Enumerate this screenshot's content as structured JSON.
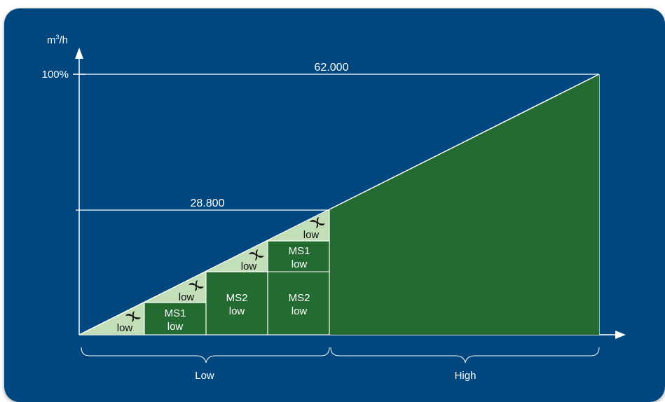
{
  "colors": {
    "background": "#00467f",
    "dark_green": "#246b32",
    "light_green": "#c3dfb8",
    "line": "#ffffff",
    "dark_text": "#111111"
  },
  "axis": {
    "y_unit_base": "m",
    "y_unit_exp": "3",
    "y_unit_tail": "/h",
    "y_max_label": "100%"
  },
  "levels": {
    "top_value": "62.000",
    "mid_value": "28.800"
  },
  "cells": {
    "c1_top": "low",
    "c2_top": "low",
    "c2_bottom_line1": "MS1",
    "c2_bottom_line2": "low",
    "c3_top": "low",
    "c3_bottom_line1": "MS2",
    "c3_bottom_line2": "low",
    "c4_top": "low",
    "c4_mid_line1": "MS1",
    "c4_mid_line2": "low",
    "c4_bottom_line1": "MS2",
    "c4_bottom_line2": "low"
  },
  "icon": "fan-icon",
  "ranges": {
    "low_label": "Low",
    "high_label": "High"
  }
}
